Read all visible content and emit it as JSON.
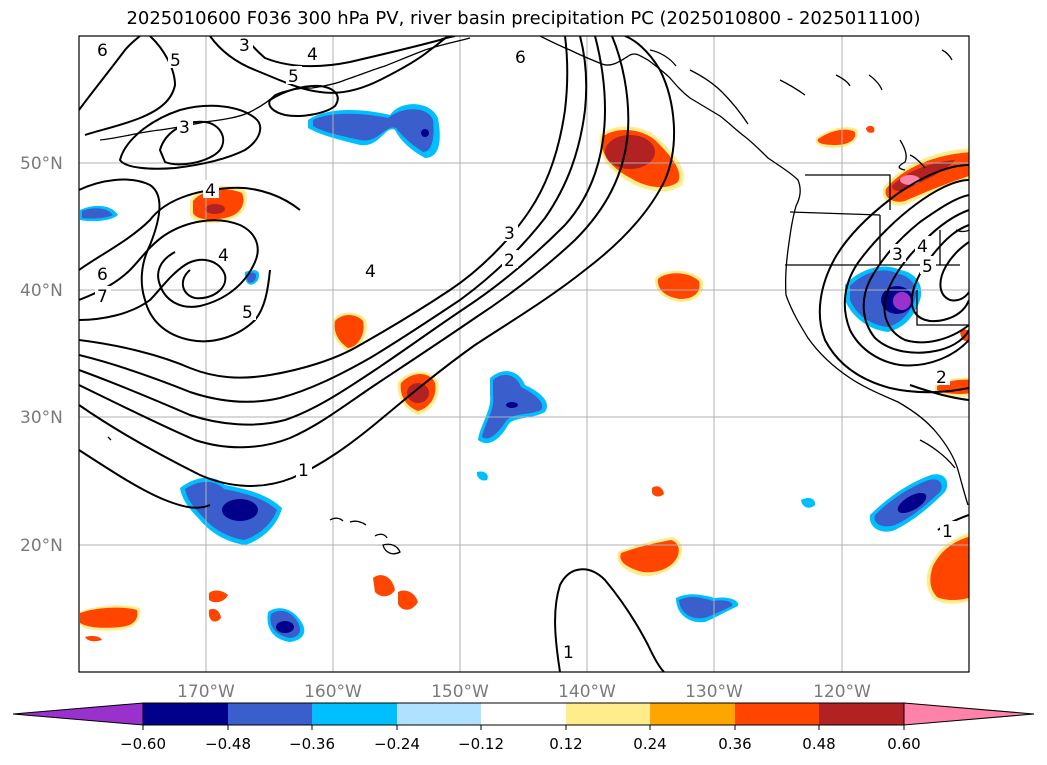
{
  "title": "2025010600 F036 300 hPa PV, river basin precipitation PC (2025010800 - 2025011100)",
  "map": {
    "lon_labels": [
      "170°W",
      "160°W",
      "150°W",
      "140°W",
      "130°W",
      "120°W"
    ],
    "lat_labels": [
      "50°N",
      "40°N",
      "30°N",
      "20°N"
    ],
    "contour_labels": [
      "6",
      "3",
      "4",
      "5",
      "6",
      "5",
      "3",
      "4",
      "4",
      "6",
      "7",
      "5",
      "4",
      "3",
      "2",
      "1",
      "1",
      "3",
      "4",
      "5",
      "2",
      "1"
    ],
    "contour_line_color": "#000000",
    "coastline_color": "#000000",
    "gridline_color": "#b0b0b0"
  },
  "colorbar": {
    "ticks": [
      "−0.60",
      "−0.48",
      "−0.36",
      "−0.24",
      "−0.12",
      "0.12",
      "0.24",
      "0.36",
      "0.48",
      "0.60"
    ],
    "colors": [
      "#9932cc",
      "#00008b",
      "#3a5fcd",
      "#00bfff",
      "#b0e2ff",
      "#ffffff",
      "#ffec8b",
      "#ffa500",
      "#ff4500",
      "#b22222",
      "#ff82ab"
    ]
  }
}
